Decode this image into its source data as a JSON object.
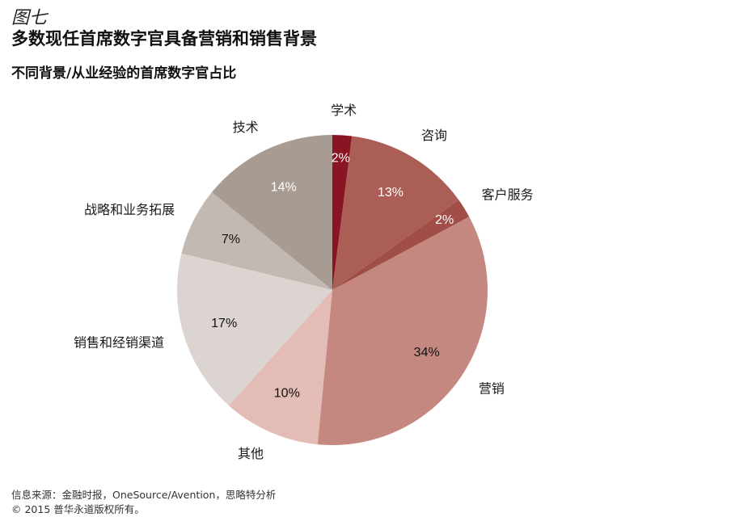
{
  "figure_label": "图七",
  "title": "多数现任首席数字官具备营销和销售背景",
  "subtitle": "不同背景/从业经验的首席数字官占比",
  "source": "信息来源：金融时报，OneSource/Avention，思略特分析",
  "copyright": "© 2015 普华永道版权所有。",
  "chart_data": {
    "type": "pie",
    "title": "不同背景/从业经验的首席数字官占比",
    "unit": "%",
    "start": "12 o'clock",
    "direction": "clockwise",
    "slices": [
      {
        "label": "学术",
        "value": 2,
        "value_label": "2%",
        "color": "#8b1424"
      },
      {
        "label": "咨询",
        "value": 13,
        "value_label": "13%",
        "color": "#ab5e55"
      },
      {
        "label": "客户服务",
        "value": 2,
        "value_label": "2%",
        "color": "#a04e47"
      },
      {
        "label": "营销",
        "value": 34,
        "value_label": "34%",
        "color": "#c48880"
      },
      {
        "label": "其他",
        "value": 10,
        "value_label": "10%",
        "color": "#e2bcb5"
      },
      {
        "label": "销售和经销渠道",
        "value": 17,
        "value_label": "17%",
        "color": "#dcd4d0"
      },
      {
        "label": "战略和业务拓展",
        "value": 7,
        "value_label": "7%",
        "color": "#c3b9b3"
      },
      {
        "label": "技术",
        "value": 14,
        "value_label": "14%",
        "color": "#a89b92"
      }
    ]
  }
}
